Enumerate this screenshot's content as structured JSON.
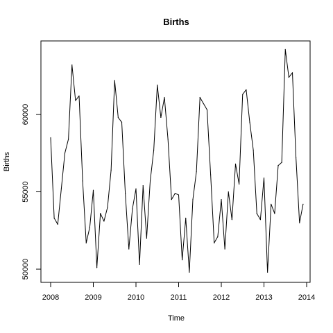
{
  "chart_data": {
    "type": "line",
    "title": "Births",
    "xlabel": "Time",
    "ylabel": "Births",
    "x_start": 2008,
    "frequency": 12,
    "xlim": [
      2008,
      2014
    ],
    "ylim": [
      50000,
      64000
    ],
    "x_ticks": [
      2008,
      2009,
      2010,
      2011,
      2012,
      2013,
      2014
    ],
    "x_tick_labels": [
      "2008",
      "2009",
      "2010",
      "2011",
      "2012",
      "2013",
      "2014"
    ],
    "y_ticks": [
      50000,
      55000,
      60000
    ],
    "y_tick_labels": [
      "50000",
      "55000",
      "60000"
    ],
    "grid": false,
    "legend": "none",
    "series": [
      {
        "color": "#000000",
        "values": [
          58500,
          53300,
          52900,
          55200,
          57500,
          58400,
          63200,
          60900,
          61200,
          55700,
          51700,
          52700,
          55100,
          50100,
          53600,
          53100,
          54000,
          56400,
          62200,
          59800,
          59500,
          54900,
          51300,
          53900,
          55200,
          50300,
          55400,
          52000,
          55700,
          57700,
          61900,
          59800,
          61100,
          58400,
          54500,
          54900,
          54800,
          50600,
          53300,
          49800,
          54500,
          56300,
          61100,
          60700,
          60300,
          56100,
          51700,
          52100,
          54500,
          51300,
          55000,
          53200,
          56800,
          55500,
          61300,
          61600,
          59500,
          57700,
          53600,
          53200,
          55900,
          49800,
          54200,
          53600,
          56700,
          56900,
          64200,
          62400,
          62700,
          57200,
          53000,
          54200
        ]
      }
    ]
  }
}
